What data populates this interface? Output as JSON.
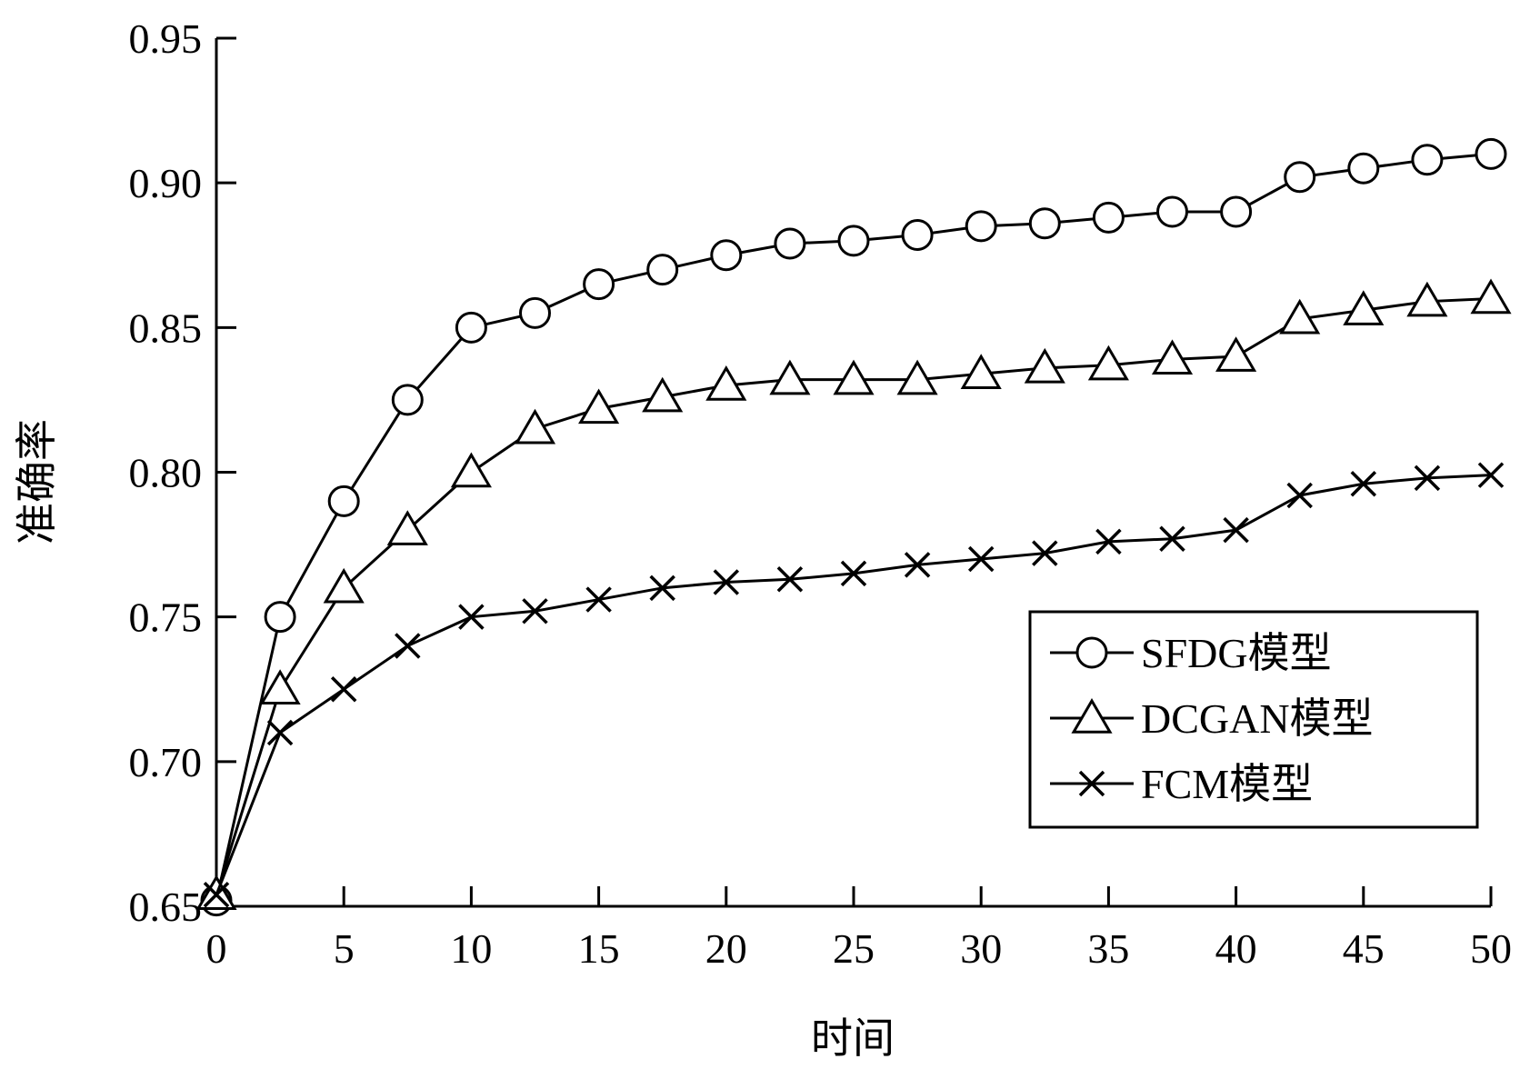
{
  "chart_data": {
    "type": "line",
    "title": "",
    "xlabel": "时间",
    "ylabel": "准确率",
    "xlim": [
      0,
      50
    ],
    "ylim": [
      0.65,
      0.95
    ],
    "xticks": [
      0,
      5,
      10,
      15,
      20,
      25,
      30,
      35,
      40,
      45,
      50
    ],
    "xtick_labels": [
      "0",
      "5",
      "10",
      "15",
      "20",
      "25",
      "30",
      "35",
      "40",
      "45",
      "50"
    ],
    "yticks": [
      0.65,
      0.7,
      0.75,
      0.8,
      0.85,
      0.9,
      0.95
    ],
    "ytick_labels": [
      "0.65",
      "0.70",
      "0.75",
      "0.80",
      "0.85",
      "0.90",
      "0.95"
    ],
    "grid": false,
    "legend_position": "bottom-right",
    "x": [
      0,
      2.5,
      5,
      7.5,
      10,
      12.5,
      15,
      17.5,
      20,
      22.5,
      25,
      27.5,
      30,
      32.5,
      35,
      37.5,
      40,
      42.5,
      45,
      47.5,
      50
    ],
    "series": [
      {
        "name": "SFDG模型",
        "marker": "circle",
        "values": [
          0.652,
          0.75,
          0.79,
          0.825,
          0.85,
          0.855,
          0.865,
          0.87,
          0.875,
          0.879,
          0.88,
          0.882,
          0.885,
          0.886,
          0.888,
          0.89,
          0.89,
          0.902,
          0.905,
          0.908,
          0.91
        ]
      },
      {
        "name": "DCGAN模型",
        "marker": "triangle",
        "values": [
          0.654,
          0.725,
          0.76,
          0.78,
          0.8,
          0.815,
          0.822,
          0.826,
          0.83,
          0.832,
          0.832,
          0.832,
          0.834,
          0.836,
          0.837,
          0.839,
          0.84,
          0.853,
          0.856,
          0.859,
          0.86
        ]
      },
      {
        "name": "FCM模型",
        "marker": "x",
        "values": [
          0.654,
          0.71,
          0.725,
          0.74,
          0.75,
          0.752,
          0.756,
          0.76,
          0.762,
          0.763,
          0.765,
          0.768,
          0.77,
          0.772,
          0.776,
          0.777,
          0.78,
          0.792,
          0.796,
          0.798,
          0.799
        ]
      }
    ]
  },
  "colors": {
    "line": "#000000",
    "background": "#ffffff"
  }
}
